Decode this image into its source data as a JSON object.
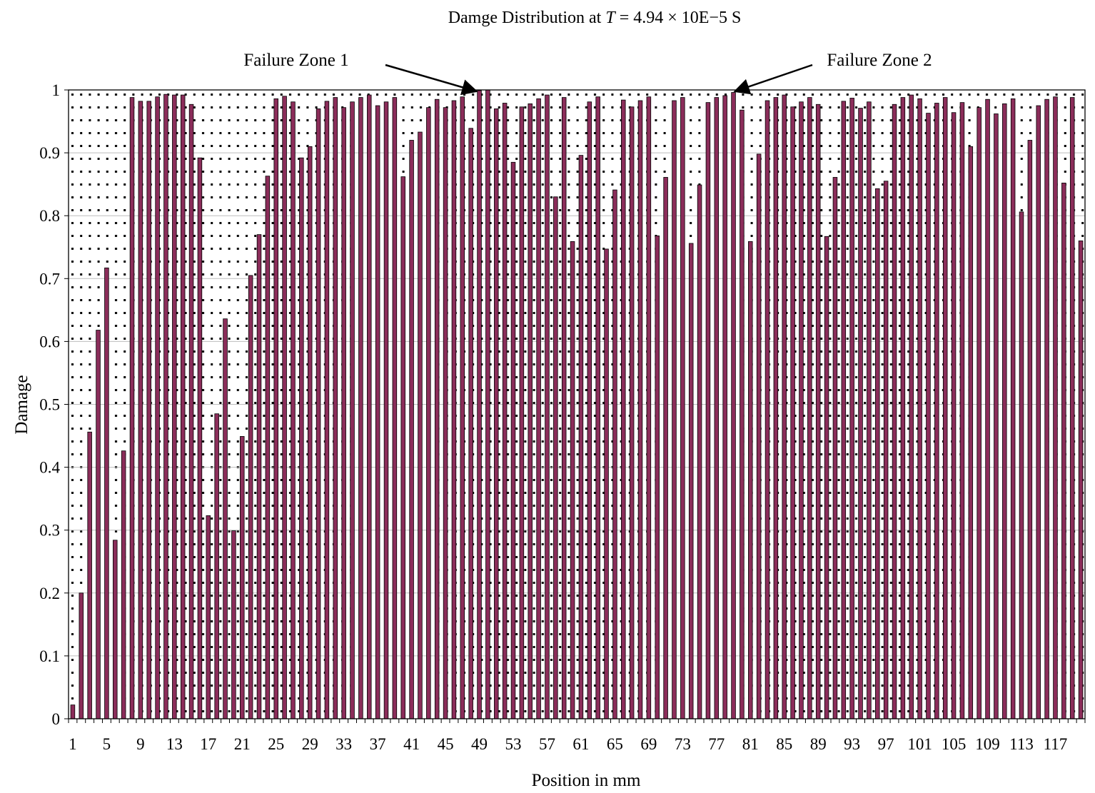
{
  "chart_data": {
    "type": "bar",
    "title_prefix": "Damge Distribution at ",
    "title_var": "T",
    "title_suffix": " = 4.94 × 10E−5 S",
    "xlabel": "Position in mm",
    "ylabel": "Damage",
    "ylim": [
      0,
      1
    ],
    "yticks": [
      "0",
      "0.1",
      "0.2",
      "0.3",
      "0.4",
      "0.5",
      "0.6",
      "0.7",
      "0.8",
      "0.9",
      "1"
    ],
    "grid": true,
    "legend": "none",
    "bar_color": "#8b2d5a",
    "x": [
      1,
      2,
      3,
      4,
      5,
      6,
      7,
      8,
      9,
      10,
      11,
      12,
      13,
      14,
      15,
      16,
      17,
      18,
      19,
      20,
      21,
      22,
      23,
      24,
      25,
      26,
      27,
      28,
      29,
      30,
      31,
      32,
      33,
      34,
      35,
      36,
      37,
      38,
      39,
      40,
      41,
      42,
      43,
      44,
      45,
      46,
      47,
      48,
      49,
      50,
      51,
      52,
      53,
      54,
      55,
      56,
      57,
      58,
      59,
      60,
      61,
      62,
      63,
      64,
      65,
      66,
      67,
      68,
      69,
      70,
      71,
      72,
      73,
      74,
      75,
      76,
      77,
      78,
      79,
      80,
      81,
      82,
      83,
      84,
      85,
      86,
      87,
      88,
      89,
      90,
      91,
      92,
      93,
      94,
      95,
      96,
      97,
      98,
      99,
      100,
      101,
      102,
      103,
      104,
      105,
      106,
      107,
      108,
      109,
      110,
      111,
      112,
      113,
      114,
      115,
      116,
      117,
      118,
      119,
      120
    ],
    "values": [
      0.022,
      0.2,
      0.456,
      0.618,
      0.717,
      0.284,
      0.426,
      0.988,
      0.982,
      0.982,
      0.989,
      0.993,
      0.992,
      0.992,
      0.977,
      0.892,
      0.323,
      0.485,
      0.636,
      0.299,
      0.449,
      0.705,
      0.77,
      0.863,
      0.986,
      0.99,
      0.981,
      0.892,
      0.91,
      0.97,
      0.982,
      0.988,
      0.972,
      0.981,
      0.988,
      0.992,
      0.975,
      0.981,
      0.988,
      0.862,
      0.92,
      0.933,
      0.972,
      0.985,
      0.972,
      0.983,
      0.989,
      0.939,
      0.999,
      1.0,
      0.97,
      0.979,
      0.885,
      0.973,
      0.978,
      0.986,
      0.992,
      0.83,
      0.988,
      0.759,
      0.896,
      0.981,
      0.989,
      0.747,
      0.841,
      0.984,
      0.973,
      0.983,
      0.989,
      0.768,
      0.861,
      0.983,
      0.988,
      0.756,
      0.849,
      0.98,
      0.988,
      0.991,
      0.996,
      0.968,
      0.759,
      0.898,
      0.983,
      0.988,
      0.992,
      0.973,
      0.981,
      0.988,
      0.977,
      0.767,
      0.861,
      0.982,
      0.987,
      0.971,
      0.981,
      0.843,
      0.855,
      0.977,
      0.988,
      0.992,
      0.986,
      0.963,
      0.979,
      0.988,
      0.964,
      0.98,
      0.91,
      0.972,
      0.985,
      0.962,
      0.978,
      0.986,
      0.806,
      0.92,
      0.975,
      0.985,
      0.989,
      0.852,
      0.988,
      0.76
    ],
    "xtick_labels": [
      "1",
      "5",
      "9",
      "13",
      "17",
      "21",
      "25",
      "29",
      "33",
      "37",
      "41",
      "45",
      "49",
      "53",
      "57",
      "61",
      "65",
      "69",
      "73",
      "77",
      "81",
      "85",
      "89",
      "93",
      "97",
      "101",
      "105",
      "109",
      "113",
      "117"
    ],
    "annotations": [
      {
        "text": "Failure Zone 1",
        "x": 49
      },
      {
        "text": "Failure Zone 2",
        "x": 79
      }
    ]
  }
}
